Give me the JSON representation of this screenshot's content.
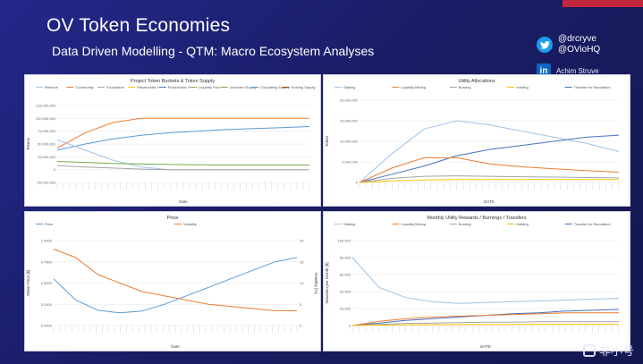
{
  "slide": {
    "title": "OV Token Economies",
    "subtitle": "Data Driven Modelling - QTM: Macro Ecosystem Analyses"
  },
  "social": {
    "twitter_handles": [
      "@drcryve",
      "@OVioHQ"
    ],
    "linkedin_name": "Achim Struve"
  },
  "watermark": {
    "text": "非小号"
  },
  "colors": {
    "blue": "#5b9bd5",
    "orange": "#ed7d31",
    "gray": "#a5a5a5",
    "yellow": "#ffc000",
    "navy": "#4472c4",
    "green": "#70ad47"
  },
  "chart_data": [
    {
      "type": "line",
      "title": "Project Token Buckets & Token Supply",
      "xlabel": "Date",
      "ylabel": "Tokens",
      "ylim": [
        -25000000,
        125000000
      ],
      "yticks": [
        "125,000,000",
        "100,000,000",
        "75,000,000",
        "50,000,000",
        "25,000,000",
        "0",
        "-25,000,000"
      ],
      "legend": [
        "Reserve",
        "Community",
        "Foundation",
        "Placeholder 1",
        "Placeholder 2",
        "Liquidity Pool",
        "Unvested Supply",
        "Circulating Supply",
        "Holding Supply"
      ],
      "series": [
        {
          "name": "Circulating Supply",
          "values": [
            38000000,
            50000000,
            60000000,
            67000000,
            72000000,
            75000000,
            78000000,
            80000000,
            82000000,
            84000000
          ]
        },
        {
          "name": "Community",
          "values": [
            42000000,
            72000000,
            92000000,
            100000000,
            100000000,
            100000000,
            100000000,
            100000000,
            100000000,
            100000000
          ]
        },
        {
          "name": "Reserve",
          "values": [
            58000000,
            38000000,
            18000000,
            5000000,
            0,
            0,
            0,
            0,
            0,
            0
          ]
        },
        {
          "name": "Unvested Supply",
          "values": [
            16000000,
            14000000,
            12000000,
            11000000,
            10000000,
            9500000,
            9000000,
            9000000,
            9000000,
            9000000
          ]
        },
        {
          "name": "Foundation",
          "values": [
            8000000,
            5000000,
            3000000,
            1000000,
            0,
            0,
            0,
            0,
            0,
            0
          ]
        }
      ]
    },
    {
      "type": "line",
      "title": "Utility Allocations",
      "xlabel": "DATE",
      "ylabel": "Token",
      "ylim": [
        0,
        20000000
      ],
      "yticks": [
        "20,000,000",
        "15,000,000",
        "10,000,000",
        "5,000,000",
        "0"
      ],
      "legend": [
        "Staking",
        "Liquidity Mining",
        "Burning",
        "Holding",
        "Transfer for Reputation"
      ],
      "series": [
        {
          "name": "Staking",
          "values": [
            0,
            7000000,
            13000000,
            15000000,
            14000000,
            12500000,
            11000000,
            9500000,
            7500000
          ]
        },
        {
          "name": "Transfer for Reputation",
          "values": [
            0,
            2000000,
            4000000,
            6500000,
            8000000,
            9000000,
            10000000,
            11000000,
            11500000
          ]
        },
        {
          "name": "Liquidity Mining",
          "values": [
            0,
            3500000,
            6000000,
            6000000,
            4500000,
            3800000,
            3300000,
            2900000,
            2500000
          ]
        },
        {
          "name": "Burning",
          "values": [
            0,
            1000000,
            1500000,
            1600000,
            1500000,
            1400000,
            1300000,
            1200000,
            1100000
          ]
        },
        {
          "name": "Holding",
          "values": [
            0,
            400000,
            600000,
            700000,
            700000,
            700000,
            700000,
            700000,
            700000
          ]
        }
      ]
    },
    {
      "type": "line",
      "title": "Price",
      "xlabel": "Date",
      "ylabel": "Token Price [$]",
      "ylabel_right": "Volatility [%]",
      "ylim": [
        0,
        1
      ],
      "yticks": [
        "1.0000",
        "0.7500",
        "0.5000",
        "0.2500",
        "0.0000"
      ],
      "yticks_right": [
        "20",
        "15",
        "10",
        "5",
        "0"
      ],
      "legend": [
        "Price",
        "Volatility"
      ],
      "series": [
        {
          "name": "Price",
          "values": [
            0.55,
            0.3,
            0.18,
            0.15,
            0.17,
            0.25,
            0.35,
            0.45,
            0.55,
            0.65,
            0.75,
            0.8
          ]
        },
        {
          "name": "Volatility",
          "values": [
            18,
            16,
            12,
            10,
            8,
            7,
            6,
            5,
            4.5,
            4,
            3.5,
            3.5
          ]
        }
      ]
    },
    {
      "type": "line",
      "title": "Monthly Utility Rewards / Burnings / Transfers",
      "xlabel": "DATE",
      "ylabel": "Valuation per Month [$]",
      "ylim": [
        0,
        100000
      ],
      "yticks": [
        "100,000",
        "80,000",
        "60,000",
        "40,000",
        "20,000",
        "0"
      ],
      "legend": [
        "Staking",
        "Liquidity Mining",
        "Burning",
        "Holding",
        "Transfer for Reputation"
      ],
      "series": [
        {
          "name": "Staking",
          "values": [
            80000,
            45000,
            33000,
            28000,
            26000,
            27000,
            28000,
            29000,
            30000,
            31000,
            32000
          ]
        },
        {
          "name": "Transfer for Reputation",
          "values": [
            0,
            3000,
            6000,
            8000,
            10000,
            12000,
            14000,
            15000,
            17000,
            18000,
            19000
          ]
        },
        {
          "name": "Liquidity Mining",
          "values": [
            0,
            5000,
            8000,
            10000,
            11000,
            12000,
            13000,
            14000,
            15000,
            15000,
            15000
          ]
        },
        {
          "name": "Burning",
          "values": [
            0,
            1500,
            2500,
            3000,
            3500,
            4000,
            4000,
            4500,
            4500,
            4500,
            4500
          ]
        },
        {
          "name": "Holding",
          "values": [
            0,
            500,
            800,
            1000,
            1200,
            1300,
            1400,
            1500,
            1500,
            1500,
            1500
          ]
        }
      ]
    }
  ]
}
